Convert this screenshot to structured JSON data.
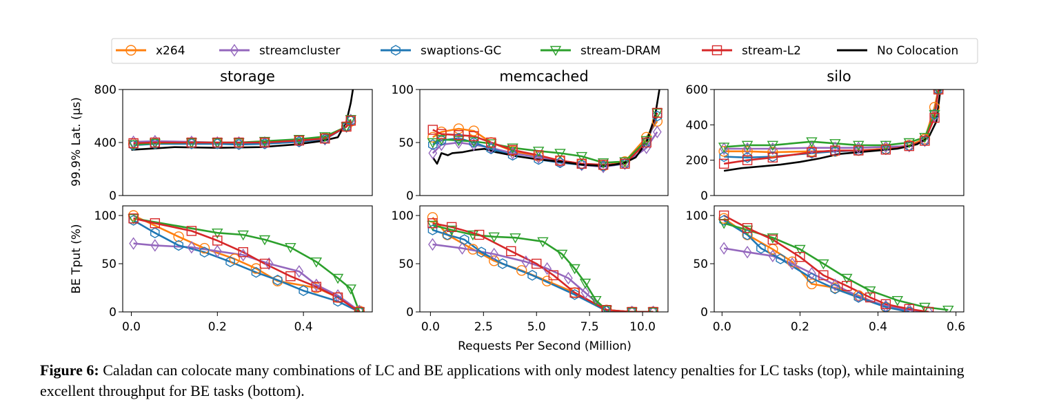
{
  "legend": [
    {
      "name": "x264",
      "color": "#ff7f0e",
      "marker": "circle"
    },
    {
      "name": "streamcluster",
      "color": "#9467bd",
      "marker": "diamond"
    },
    {
      "name": "swaptions-GC",
      "color": "#1f77b4",
      "marker": "hexagon"
    },
    {
      "name": "stream-DRAM",
      "color": "#2ca02c",
      "marker": "triangle-down"
    },
    {
      "name": "stream-L2",
      "color": "#d62728",
      "marker": "square"
    },
    {
      "name": "No Colocation",
      "color": "#000000",
      "marker": "none"
    }
  ],
  "ylabel_top": "99.9% Lat. (µs)",
  "ylabel_bottom": "BE Tput (%)",
  "xlabel": "Requests Per Second (Million)",
  "caption": {
    "label": "Figure 6:",
    "text": " Caladan can colocate many combinations of LC and BE applications with only modest latency penalties for LC tasks (top), while maintaining excellent throughput for BE tasks (bottom)."
  },
  "chart_data": [
    {
      "type": "line",
      "title": "storage",
      "panel": "latency",
      "xlim": [
        -0.02,
        0.56
      ],
      "ylim": [
        0,
        800
      ],
      "yticks": [
        0,
        400,
        800
      ],
      "xticks": [],
      "series": [
        {
          "name": "x264",
          "x": [
            0.005,
            0.055,
            0.14,
            0.2,
            0.25,
            0.31,
            0.39,
            0.45,
            0.5,
            0.51
          ],
          "y": [
            390,
            395,
            395,
            395,
            395,
            400,
            415,
            435,
            520,
            560
          ]
        },
        {
          "name": "streamcluster",
          "x": [
            0.005,
            0.055,
            0.14,
            0.2,
            0.25,
            0.31,
            0.39,
            0.45,
            0.5,
            0.51
          ],
          "y": [
            405,
            410,
            405,
            400,
            400,
            400,
            410,
            425,
            520,
            570
          ]
        },
        {
          "name": "swaptions-GC",
          "x": [
            0.005,
            0.055,
            0.14,
            0.2,
            0.25,
            0.31,
            0.39,
            0.45,
            0.5,
            0.51
          ],
          "y": [
            380,
            390,
            390,
            390,
            385,
            390,
            405,
            425,
            520,
            565
          ]
        },
        {
          "name": "stream-DRAM",
          "x": [
            0.005,
            0.055,
            0.14,
            0.2,
            0.25,
            0.31,
            0.39,
            0.45,
            0.5,
            0.51
          ],
          "y": [
            385,
            395,
            400,
            400,
            400,
            410,
            425,
            445,
            520,
            575
          ]
        },
        {
          "name": "stream-L2",
          "x": [
            0.005,
            0.055,
            0.14,
            0.2,
            0.25,
            0.31,
            0.39,
            0.45,
            0.5,
            0.51
          ],
          "y": [
            395,
            400,
            400,
            400,
            400,
            400,
            415,
            430,
            520,
            565
          ]
        },
        {
          "name": "No Colocation",
          "x": [
            0.0,
            0.05,
            0.1,
            0.2,
            0.3,
            0.38,
            0.44,
            0.48,
            0.5,
            0.51,
            0.515
          ],
          "y": [
            345,
            355,
            365,
            360,
            365,
            385,
            410,
            440,
            560,
            700,
            800
          ]
        }
      ]
    },
    {
      "type": "line",
      "title": "memcached",
      "panel": "latency",
      "xlim": [
        -0.5,
        11
      ],
      "ylim": [
        0,
        100
      ],
      "yticks": [
        0,
        50,
        100
      ],
      "xticks": [],
      "series": [
        {
          "name": "x264",
          "x": [
            0.1,
            0.5,
            1.3,
            2.0,
            2.8,
            3.8,
            5.0,
            6.0,
            7.0,
            8.0,
            9.0,
            10.0,
            10.5
          ],
          "y": [
            55,
            60,
            63,
            61,
            50,
            42,
            37,
            33,
            30,
            28,
            32,
            55,
            70
          ]
        },
        {
          "name": "streamcluster",
          "x": [
            0.1,
            0.5,
            1.3,
            2.0,
            2.8,
            3.8,
            5.0,
            6.0,
            7.0,
            8.0,
            9.0,
            10.0,
            10.5
          ],
          "y": [
            40,
            48,
            50,
            48,
            45,
            40,
            36,
            32,
            29,
            27,
            30,
            45,
            60
          ]
        },
        {
          "name": "swaptions-GC",
          "x": [
            0.1,
            0.5,
            1.3,
            2.0,
            2.8,
            3.8,
            5.0,
            6.0,
            7.0,
            8.0,
            9.0,
            10.0,
            10.5
          ],
          "y": [
            48,
            52,
            54,
            50,
            44,
            38,
            34,
            31,
            29,
            28,
            30,
            50,
            75
          ]
        },
        {
          "name": "stream-DRAM",
          "x": [
            0.1,
            0.5,
            1.3,
            2.0,
            2.8,
            3.8,
            5.0,
            6.0,
            7.0,
            8.0,
            9.0,
            10.0,
            10.5
          ],
          "y": [
            50,
            53,
            52,
            51,
            49,
            45,
            42,
            40,
            37,
            31,
            32,
            52,
            78
          ]
        },
        {
          "name": "stream-L2",
          "x": [
            0.1,
            0.5,
            1.3,
            2.0,
            2.8,
            3.8,
            5.0,
            6.0,
            7.0,
            8.0,
            9.0,
            10.0,
            10.5
          ],
          "y": [
            62,
            58,
            57,
            56,
            50,
            43,
            38,
            33,
            30,
            29,
            30,
            50,
            78
          ]
        },
        {
          "name": "No Colocation",
          "x": [
            0.1,
            0.3,
            0.5,
            0.8,
            1.0,
            1.5,
            2.0,
            2.5,
            3.0,
            4.0,
            5.0,
            6.0,
            7.0,
            8.0,
            8.5,
            9.0,
            9.5,
            10.0,
            10.4,
            10.6
          ],
          "y": [
            36,
            30,
            40,
            38,
            40,
            41,
            43,
            44,
            41,
            37,
            34,
            32,
            29,
            28,
            29,
            31,
            36,
            50,
            75,
            100
          ]
        }
      ]
    },
    {
      "type": "line",
      "title": "silo",
      "panel": "latency",
      "xlim": [
        -0.02,
        0.62
      ],
      "ylim": [
        0,
        600
      ],
      "yticks": [
        0,
        200,
        400,
        600
      ],
      "xticks": [],
      "series": [
        {
          "name": "x264",
          "x": [
            0.005,
            0.065,
            0.13,
            0.23,
            0.29,
            0.35,
            0.42,
            0.48,
            0.52,
            0.545,
            0.555
          ],
          "y": [
            250,
            250,
            245,
            250,
            250,
            255,
            265,
            285,
            320,
            500,
            600
          ]
        },
        {
          "name": "streamcluster",
          "x": [
            0.005,
            0.065,
            0.13,
            0.23,
            0.29,
            0.35,
            0.42,
            0.48,
            0.52,
            0.545,
            0.555
          ],
          "y": [
            265,
            265,
            265,
            270,
            270,
            270,
            275,
            280,
            310,
            450,
            600
          ]
        },
        {
          "name": "swaptions-GC",
          "x": [
            0.005,
            0.065,
            0.13,
            0.23,
            0.29,
            0.35,
            0.42,
            0.48,
            0.52,
            0.545,
            0.555
          ],
          "y": [
            220,
            215,
            220,
            240,
            250,
            255,
            260,
            280,
            310,
            460,
            600
          ]
        },
        {
          "name": "stream-DRAM",
          "x": [
            0.005,
            0.065,
            0.13,
            0.23,
            0.29,
            0.35,
            0.42,
            0.48,
            0.52,
            0.545,
            0.555
          ],
          "y": [
            275,
            285,
            285,
            305,
            295,
            285,
            285,
            300,
            330,
            460,
            600
          ]
        },
        {
          "name": "stream-L2",
          "x": [
            0.005,
            0.065,
            0.13,
            0.23,
            0.29,
            0.35,
            0.42,
            0.48,
            0.52,
            0.545,
            0.555
          ],
          "y": [
            180,
            200,
            215,
            245,
            255,
            255,
            260,
            280,
            310,
            440,
            600
          ]
        },
        {
          "name": "No Colocation",
          "x": [
            0.005,
            0.05,
            0.1,
            0.15,
            0.2,
            0.25,
            0.3,
            0.35,
            0.4,
            0.45,
            0.5,
            0.53,
            0.55,
            0.56
          ],
          "y": [
            140,
            155,
            165,
            175,
            190,
            210,
            235,
            245,
            255,
            265,
            290,
            330,
            420,
            600
          ]
        }
      ]
    },
    {
      "type": "line",
      "panel": "throughput",
      "xlim": [
        -0.02,
        0.56
      ],
      "ylim": [
        0,
        110
      ],
      "yticks": [
        0,
        50,
        100
      ],
      "xticks": [
        0.0,
        0.2,
        0.4
      ],
      "series": [
        {
          "name": "x264",
          "x": [
            0.005,
            0.11,
            0.17,
            0.24,
            0.29,
            0.34,
            0.43,
            0.48,
            0.53
          ],
          "y": [
            100,
            78,
            66,
            55,
            45,
            32,
            25,
            15,
            1
          ]
        },
        {
          "name": "streamcluster",
          "x": [
            0.005,
            0.055,
            0.14,
            0.2,
            0.26,
            0.32,
            0.39,
            0.43,
            0.48,
            0.53
          ],
          "y": [
            71,
            69,
            67,
            63,
            59,
            50,
            42,
            28,
            17,
            1
          ]
        },
        {
          "name": "swaptions-GC",
          "x": [
            0.005,
            0.055,
            0.11,
            0.17,
            0.23,
            0.29,
            0.34,
            0.4,
            0.48,
            0.53
          ],
          "y": [
            95,
            82,
            69,
            62,
            52,
            41,
            33,
            22,
            11,
            0
          ]
        },
        {
          "name": "stream-DRAM",
          "x": [
            0.005,
            0.2,
            0.26,
            0.31,
            0.37,
            0.43,
            0.48,
            0.51,
            0.53
          ],
          "y": [
            97,
            82,
            80,
            75,
            67,
            52,
            35,
            24,
            0
          ]
        },
        {
          "name": "stream-L2",
          "x": [
            0.005,
            0.055,
            0.14,
            0.2,
            0.26,
            0.31,
            0.37,
            0.43,
            0.48,
            0.53
          ],
          "y": [
            97,
            92,
            84,
            74,
            62,
            50,
            37,
            26,
            15,
            0
          ]
        },
        {
          "name": "No Colocation",
          "x": [],
          "y": []
        }
      ]
    },
    {
      "type": "line",
      "panel": "throughput",
      "xlim": [
        -0.5,
        11.2
      ],
      "ylim": [
        0,
        110
      ],
      "yticks": [
        0,
        50,
        100
      ],
      "xticks": [
        0.0,
        2.5,
        5.0,
        7.5,
        10.0
      ],
      "series": [
        {
          "name": "x264",
          "x": [
            0.1,
            0.8,
            2.0,
            3.0,
            4.3,
            5.5,
            6.8,
            8.3,
            9.5,
            10.5
          ],
          "y": [
            98,
            80,
            65,
            53,
            43,
            32,
            20,
            2,
            0,
            0
          ]
        },
        {
          "name": "streamcluster",
          "x": [
            0.1,
            1.5,
            3.0,
            4.5,
            5.5,
            6.5,
            7.3,
            8.3,
            9.5,
            10.5
          ],
          "y": [
            70,
            66,
            60,
            52,
            45,
            35,
            20,
            1,
            0,
            0
          ]
        },
        {
          "name": "swaptions-GC",
          "x": [
            0.1,
            0.8,
            1.6,
            2.4,
            3.4,
            4.8,
            6.8,
            8.3,
            9.5,
            10.5
          ],
          "y": [
            85,
            80,
            75,
            62,
            50,
            38,
            18,
            1,
            0,
            0
          ]
        },
        {
          "name": "stream-DRAM",
          "x": [
            0.1,
            1.0,
            2.0,
            3.0,
            4.0,
            5.3,
            6.2,
            6.8,
            7.3,
            7.8,
            8.3,
            9.5,
            10.5
          ],
          "y": [
            90,
            85,
            80,
            78,
            77,
            73,
            60,
            45,
            30,
            12,
            2,
            0,
            0
          ]
        },
        {
          "name": "stream-L2",
          "x": [
            0.1,
            1.0,
            2.3,
            3.8,
            5.0,
            5.8,
            6.8,
            8.3,
            9.5,
            10.5
          ],
          "y": [
            92,
            88,
            80,
            63,
            50,
            38,
            20,
            2,
            0,
            0
          ]
        },
        {
          "name": "No Colocation",
          "x": [],
          "y": []
        }
      ]
    },
    {
      "type": "line",
      "panel": "throughput",
      "xlim": [
        -0.02,
        0.62
      ],
      "ylim": [
        0,
        110
      ],
      "yticks": [
        0,
        50,
        100
      ],
      "xticks": [
        0.0,
        0.2,
        0.4,
        0.6
      ],
      "series": [
        {
          "name": "x264",
          "x": [
            0.005,
            0.065,
            0.13,
            0.18,
            0.23,
            0.29,
            0.35,
            0.42,
            0.48
          ],
          "y": [
            97,
            80,
            65,
            52,
            29,
            25,
            17,
            5,
            0
          ]
        },
        {
          "name": "streamcluster",
          "x": [
            0.005,
            0.065,
            0.13,
            0.18,
            0.23,
            0.29,
            0.35,
            0.42,
            0.48,
            0.53
          ],
          "y": [
            66,
            62,
            58,
            50,
            40,
            28,
            16,
            6,
            2,
            0
          ]
        },
        {
          "name": "swaptions-GC",
          "x": [
            0.005,
            0.065,
            0.1,
            0.15,
            0.23,
            0.29,
            0.35,
            0.42,
            0.48
          ],
          "y": [
            95,
            80,
            66,
            55,
            35,
            24,
            15,
            5,
            0
          ]
        },
        {
          "name": "stream-DRAM",
          "x": [
            0.005,
            0.065,
            0.13,
            0.2,
            0.26,
            0.32,
            0.38,
            0.45,
            0.52,
            0.58
          ],
          "y": [
            92,
            85,
            77,
            65,
            50,
            35,
            22,
            12,
            5,
            2
          ]
        },
        {
          "name": "stream-L2",
          "x": [
            0.005,
            0.065,
            0.13,
            0.2,
            0.26,
            0.32,
            0.38,
            0.42,
            0.48,
            0.53
          ],
          "y": [
            100,
            87,
            75,
            57,
            38,
            27,
            15,
            8,
            3,
            0
          ]
        },
        {
          "name": "No Colocation",
          "x": [],
          "y": []
        }
      ]
    }
  ]
}
